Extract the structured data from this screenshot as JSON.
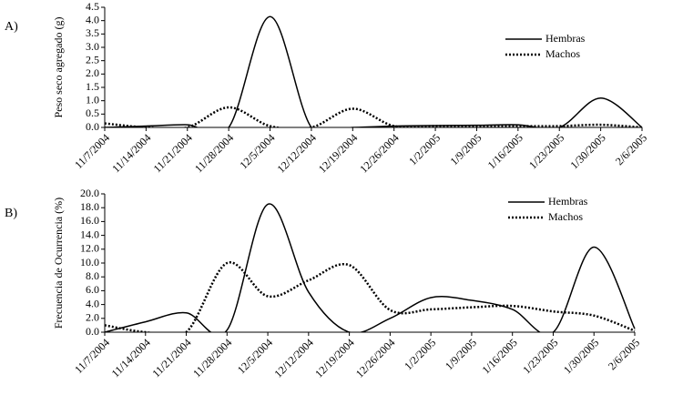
{
  "chart_data": [
    {
      "type": "line",
      "panel": "A)",
      "ylabel": "Peso seco agregado (g)",
      "categories": [
        "11/7/2004",
        "11/14/2004",
        "11/21/2004",
        "11/28/2004",
        "12/5/2004",
        "12/12/2004",
        "12/19/2004",
        "12/26/2004",
        "1/2/2005",
        "1/9/2005",
        "1/16/2005",
        "1/23/2005",
        "1/30/2005",
        "2/6/2005"
      ],
      "series": [
        {
          "name": "Hembras",
          "color": "#000000",
          "dash": "solid",
          "values": [
            0,
            0.05,
            0.1,
            0,
            4.15,
            0,
            0,
            0.05,
            0.07,
            0.08,
            0.1,
            0,
            1.1,
            0
          ]
        },
        {
          "name": "Machos",
          "color": "#000000",
          "dash": "dotted",
          "values": [
            0.15,
            0,
            0,
            0.75,
            0.05,
            0,
            0.7,
            0.05,
            0.05,
            0.05,
            0.05,
            0.05,
            0.1,
            0
          ]
        }
      ],
      "ylim": [
        0,
        4.5
      ],
      "yticks": [
        {
          "value": 0,
          "label": "0.0"
        },
        {
          "value": 0.5,
          "label": "0.5"
        },
        {
          "value": 1,
          "label": "1.0"
        },
        {
          "value": 1.5,
          "label": "1.5"
        },
        {
          "value": 2,
          "label": "2.0"
        },
        {
          "value": 2.5,
          "label": "2.5"
        },
        {
          "value": 3,
          "label": "3.0"
        },
        {
          "value": 3.5,
          "label": "3.5"
        },
        {
          "value": 4,
          "label": "4.0"
        },
        {
          "value": 4.5,
          "label": "4.5"
        }
      ],
      "legend": "upper right"
    },
    {
      "type": "line",
      "panel": "B)",
      "ylabel": "Frecuencia de Ocurrencia (%)",
      "categories": [
        "11/7/2004",
        "11/14/2004",
        "11/21/2004",
        "11/28/2004",
        "12/5/2004",
        "12/12/2004",
        "12/19/2004",
        "12/26/2004",
        "1/2/2005",
        "1/9/2005",
        "1/16/2005",
        "1/23/2005",
        "1/30/2005",
        "2/6/2005"
      ],
      "series": [
        {
          "name": "Hembras",
          "color": "#000000",
          "dash": "solid",
          "values": [
            0,
            1.5,
            2.8,
            0.3,
            18.5,
            5.8,
            0,
            2,
            5,
            4.6,
            3.3,
            0,
            12.3,
            0.5
          ]
        },
        {
          "name": "Machos",
          "color": "#000000",
          "dash": "dotted",
          "values": [
            1,
            0,
            0,
            10,
            5.2,
            7.5,
            9.7,
            3.2,
            3.3,
            3.6,
            3.8,
            3,
            2.4,
            0.2
          ]
        }
      ],
      "ylim": [
        0,
        20
      ],
      "yticks": [
        {
          "value": 0,
          "label": "0.0"
        },
        {
          "value": 2,
          "label": "2.0"
        },
        {
          "value": 4,
          "label": "4.0"
        },
        {
          "value": 6,
          "label": "6.0"
        },
        {
          "value": 8,
          "label": "8.0"
        },
        {
          "value": 10,
          "label": "10.0"
        },
        {
          "value": 12,
          "label": "12.0"
        },
        {
          "value": 14,
          "label": "14.0"
        },
        {
          "value": 16,
          "label": "16.0"
        },
        {
          "value": 18,
          "label": "18.0"
        },
        {
          "value": 20,
          "label": "20.0"
        }
      ],
      "legend": "upper right"
    }
  ]
}
